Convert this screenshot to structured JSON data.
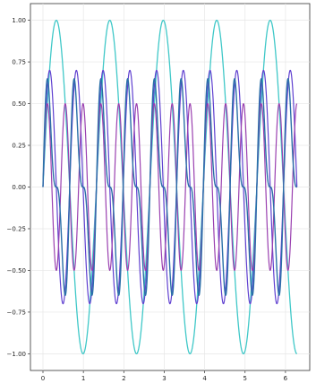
{
  "chart_data": {
    "type": "line",
    "title": "",
    "xlabel": "",
    "ylabel": "",
    "xlim": [
      -0.31,
      6.6
    ],
    "ylim": [
      -1.1,
      1.1
    ],
    "x_range": [
      0,
      6.2832
    ],
    "grid": true,
    "legend": "none",
    "x_ticks": [
      0,
      1,
      2,
      3,
      4,
      5,
      6
    ],
    "x_tick_labels": [
      "0",
      "1",
      "2",
      "3",
      "4",
      "5",
      "6"
    ],
    "y_ticks": [
      1.0,
      0.75,
      0.5,
      0.25,
      0.0,
      -0.25,
      -0.5,
      -0.75,
      -1.0
    ],
    "y_tick_labels": [
      "1.00",
      "0.75",
      "0.50",
      "0.25",
      "0.00",
      "−0.25",
      "−0.50",
      "−0.75",
      "−1.00"
    ],
    "series": [
      {
        "color": "#40c8c8",
        "stroke_width": 1.3,
        "formula": "sin(4.75x)"
      },
      {
        "color": "#6040d0",
        "stroke_width": 1.2,
        "formula": "0.7*sin(9.5x)"
      },
      {
        "color": "#9a40b0",
        "stroke_width": 1.2,
        "formula": "0.5*sin(14.25x)"
      },
      {
        "color": "#2a6fa8",
        "stroke_width": 1.4,
        "formula": "0.5*sin(9.5x)+0.25*sin(19x)"
      }
    ]
  }
}
